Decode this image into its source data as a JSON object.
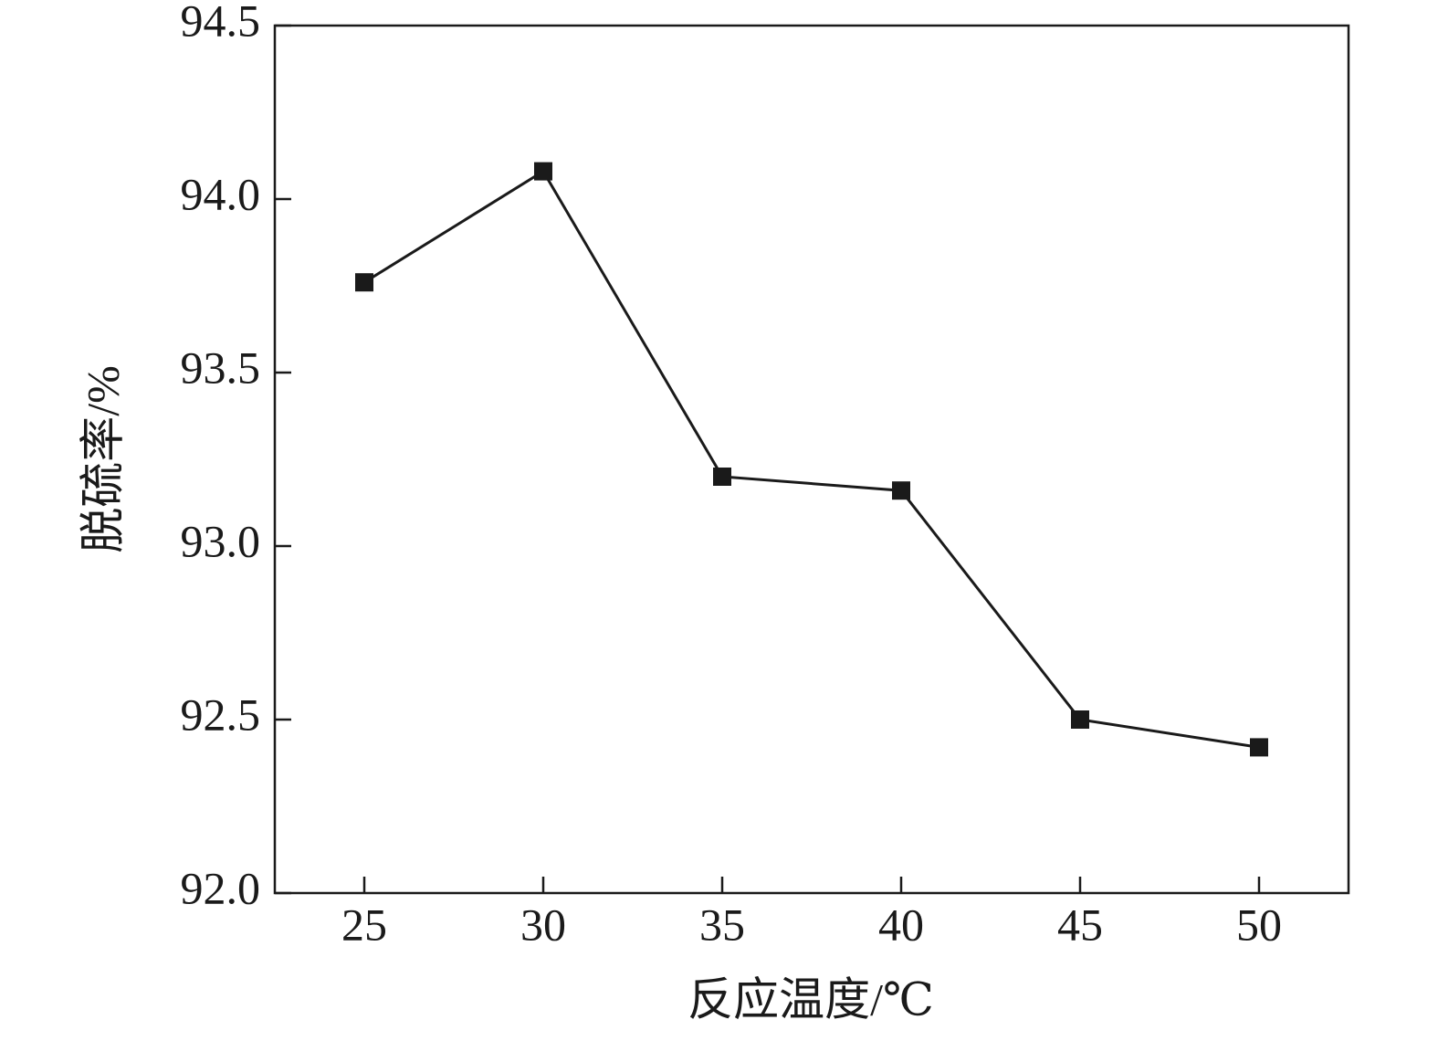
{
  "chart_data": {
    "type": "line",
    "x_label": "反应温度/℃",
    "y_label": "脱硫率/%",
    "x": [
      25,
      30,
      35,
      40,
      45,
      50
    ],
    "series": [
      {
        "color": "#1a1a1a",
        "values": [
          93.76,
          94.08,
          93.2,
          93.16,
          92.5,
          92.42
        ]
      }
    ],
    "xlim": [
      22.5,
      52.5
    ],
    "xticks": [
      25,
      30,
      35,
      40,
      45,
      50
    ],
    "ylim": [
      92.0,
      94.5
    ],
    "yticks": [
      {
        "value": 92.0,
        "label": "92.0"
      },
      92.5,
      {
        "value": 93.0,
        "label": "93.0"
      },
      93.5,
      {
        "value": 94.0,
        "label": "94.0"
      },
      94.5
    ],
    "marker": "square",
    "grid": false
  }
}
